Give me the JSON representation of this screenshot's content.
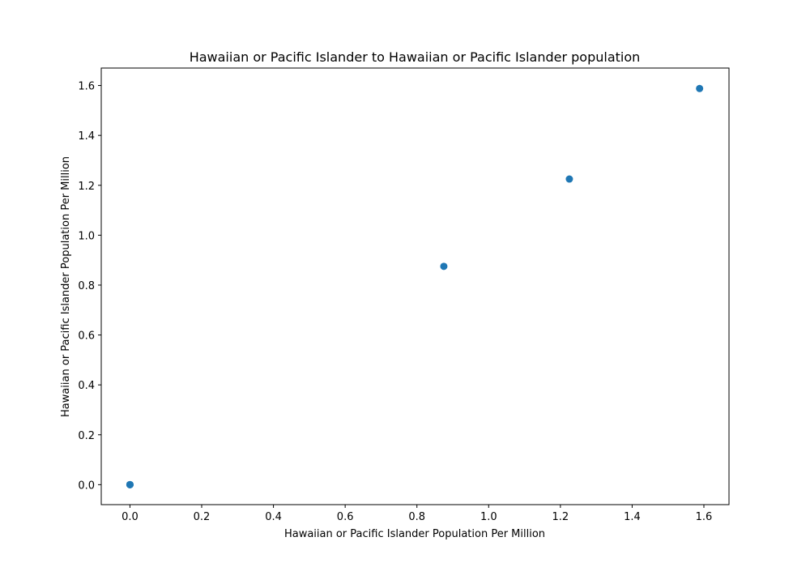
{
  "chart_data": {
    "type": "scatter",
    "title": "Hawaiian or Pacific Islander to Hawaiian or Pacific Islander population",
    "xlabel": "Hawaiian or Pacific Islander Population Per Million",
    "ylabel": "Hawaiian or Pacific Islander Population Per Million",
    "xlim": [
      -0.08,
      1.67
    ],
    "ylim": [
      -0.08,
      1.67
    ],
    "xticks": [
      "0.0",
      "0.2",
      "0.4",
      "0.6",
      "0.8",
      "1.0",
      "1.2",
      "1.4",
      "1.6"
    ],
    "yticks": [
      "0.0",
      "0.2",
      "0.4",
      "0.6",
      "0.8",
      "1.0",
      "1.2",
      "1.4",
      "1.6"
    ],
    "grid": false,
    "marker_color": "#1f77b4",
    "points": [
      {
        "x": 0.0,
        "y": 0.0
      },
      {
        "x": 0.0,
        "y": 0.0
      },
      {
        "x": 0.0,
        "y": 0.0
      },
      {
        "x": 0.875,
        "y": 0.875
      },
      {
        "x": 1.225,
        "y": 1.225
      },
      {
        "x": 1.588,
        "y": 1.588
      }
    ]
  }
}
